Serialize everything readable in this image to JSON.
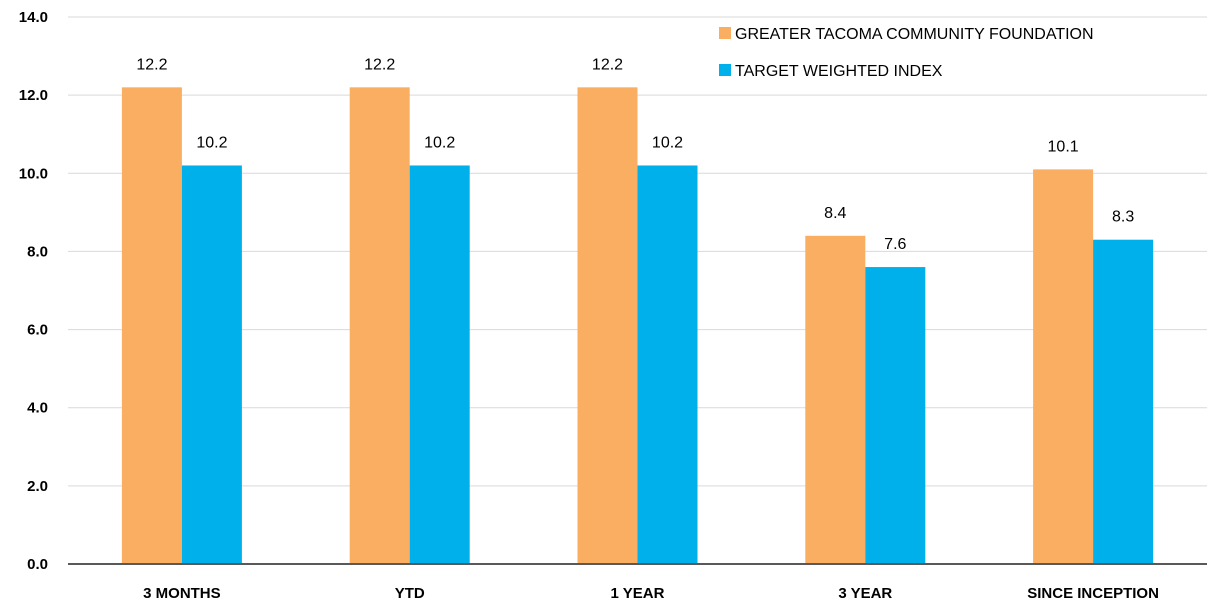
{
  "chart_data": {
    "type": "bar",
    "categories": [
      "3 MONTHS",
      "YTD",
      "1 YEAR",
      "3 YEAR",
      "SINCE INCEPTION"
    ],
    "series": [
      {
        "name": "GREATER TACOMA COMMUNITY FOUNDATION",
        "color": "#f9ae62",
        "values": [
          12.2,
          12.2,
          12.2,
          8.4,
          10.1
        ]
      },
      {
        "name": "TARGET WEIGHTED INDEX",
        "color": "#00b0ea",
        "values": [
          10.2,
          10.2,
          10.2,
          7.6,
          8.3
        ]
      }
    ],
    "ylim": [
      0,
      14
    ],
    "yticks": [
      "0.0",
      "2.0",
      "4.0",
      "6.0",
      "8.0",
      "10.0",
      "12.0",
      "14.0"
    ],
    "grid": true,
    "legend_position": "top-right"
  }
}
